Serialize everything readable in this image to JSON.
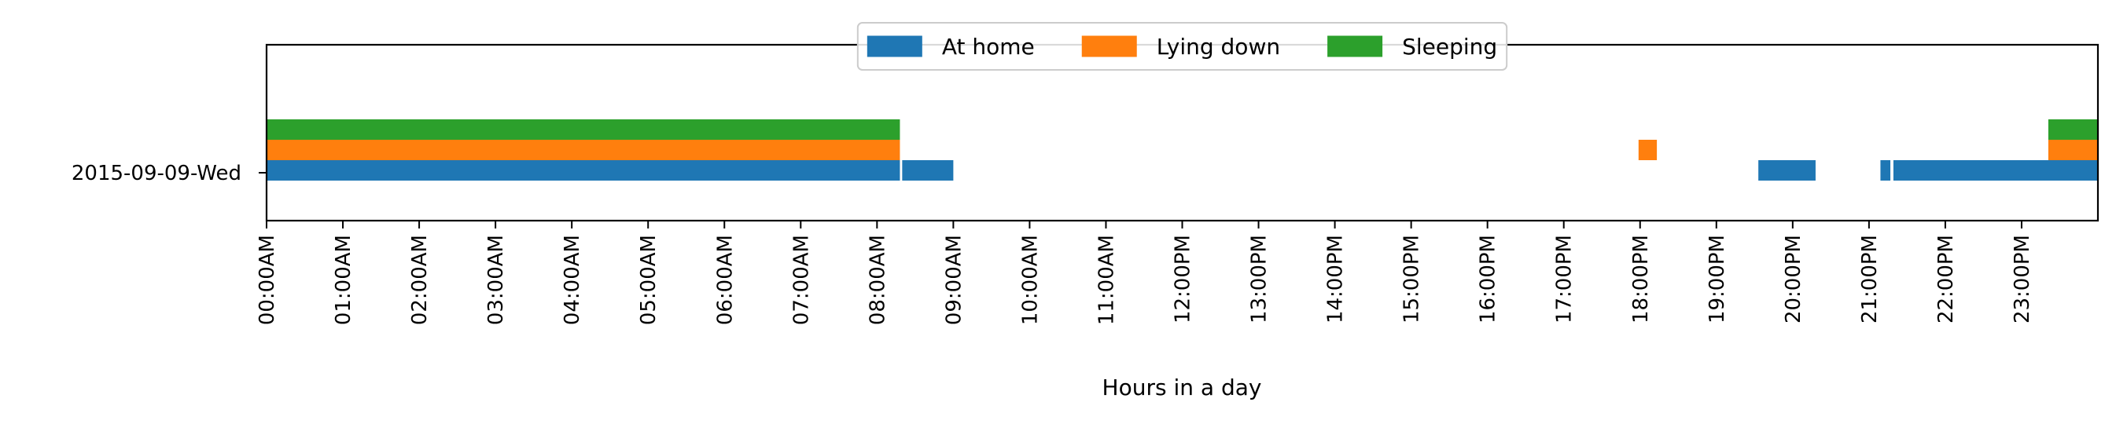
{
  "chart_data": {
    "type": "timeline",
    "xlabel": "Hours in a day",
    "xlim": [
      0,
      24
    ],
    "row_label": "2015-09-09-Wed",
    "x_ticks": [
      "00:00AM",
      "01:00AM",
      "02:00AM",
      "03:00AM",
      "04:00AM",
      "05:00AM",
      "06:00AM",
      "07:00AM",
      "08:00AM",
      "09:00AM",
      "10:00AM",
      "11:00AM",
      "12:00PM",
      "13:00PM",
      "14:00PM",
      "15:00PM",
      "16:00PM",
      "17:00PM",
      "18:00PM",
      "19:00PM",
      "20:00PM",
      "21:00PM",
      "22:00PM",
      "23:00PM"
    ],
    "legend_placement": "upper-center",
    "series": [
      {
        "name": "At home",
        "color": "#1f77b4",
        "lane": 0,
        "intervals": [
          [
            0,
            8.3
          ],
          [
            8.33,
            9.0
          ],
          [
            19.55,
            20.3
          ],
          [
            21.15,
            21.28
          ],
          [
            21.32,
            24.0
          ]
        ]
      },
      {
        "name": "Lying down",
        "color": "#ff7f0e",
        "lane": 1,
        "intervals": [
          [
            0,
            8.3
          ],
          [
            17.98,
            18.22
          ],
          [
            23.35,
            24.0
          ]
        ]
      },
      {
        "name": "Sleeping",
        "color": "#2ca02c",
        "lane": 2,
        "intervals": [
          [
            0,
            8.3
          ],
          [
            23.35,
            24.0
          ]
        ]
      }
    ]
  }
}
